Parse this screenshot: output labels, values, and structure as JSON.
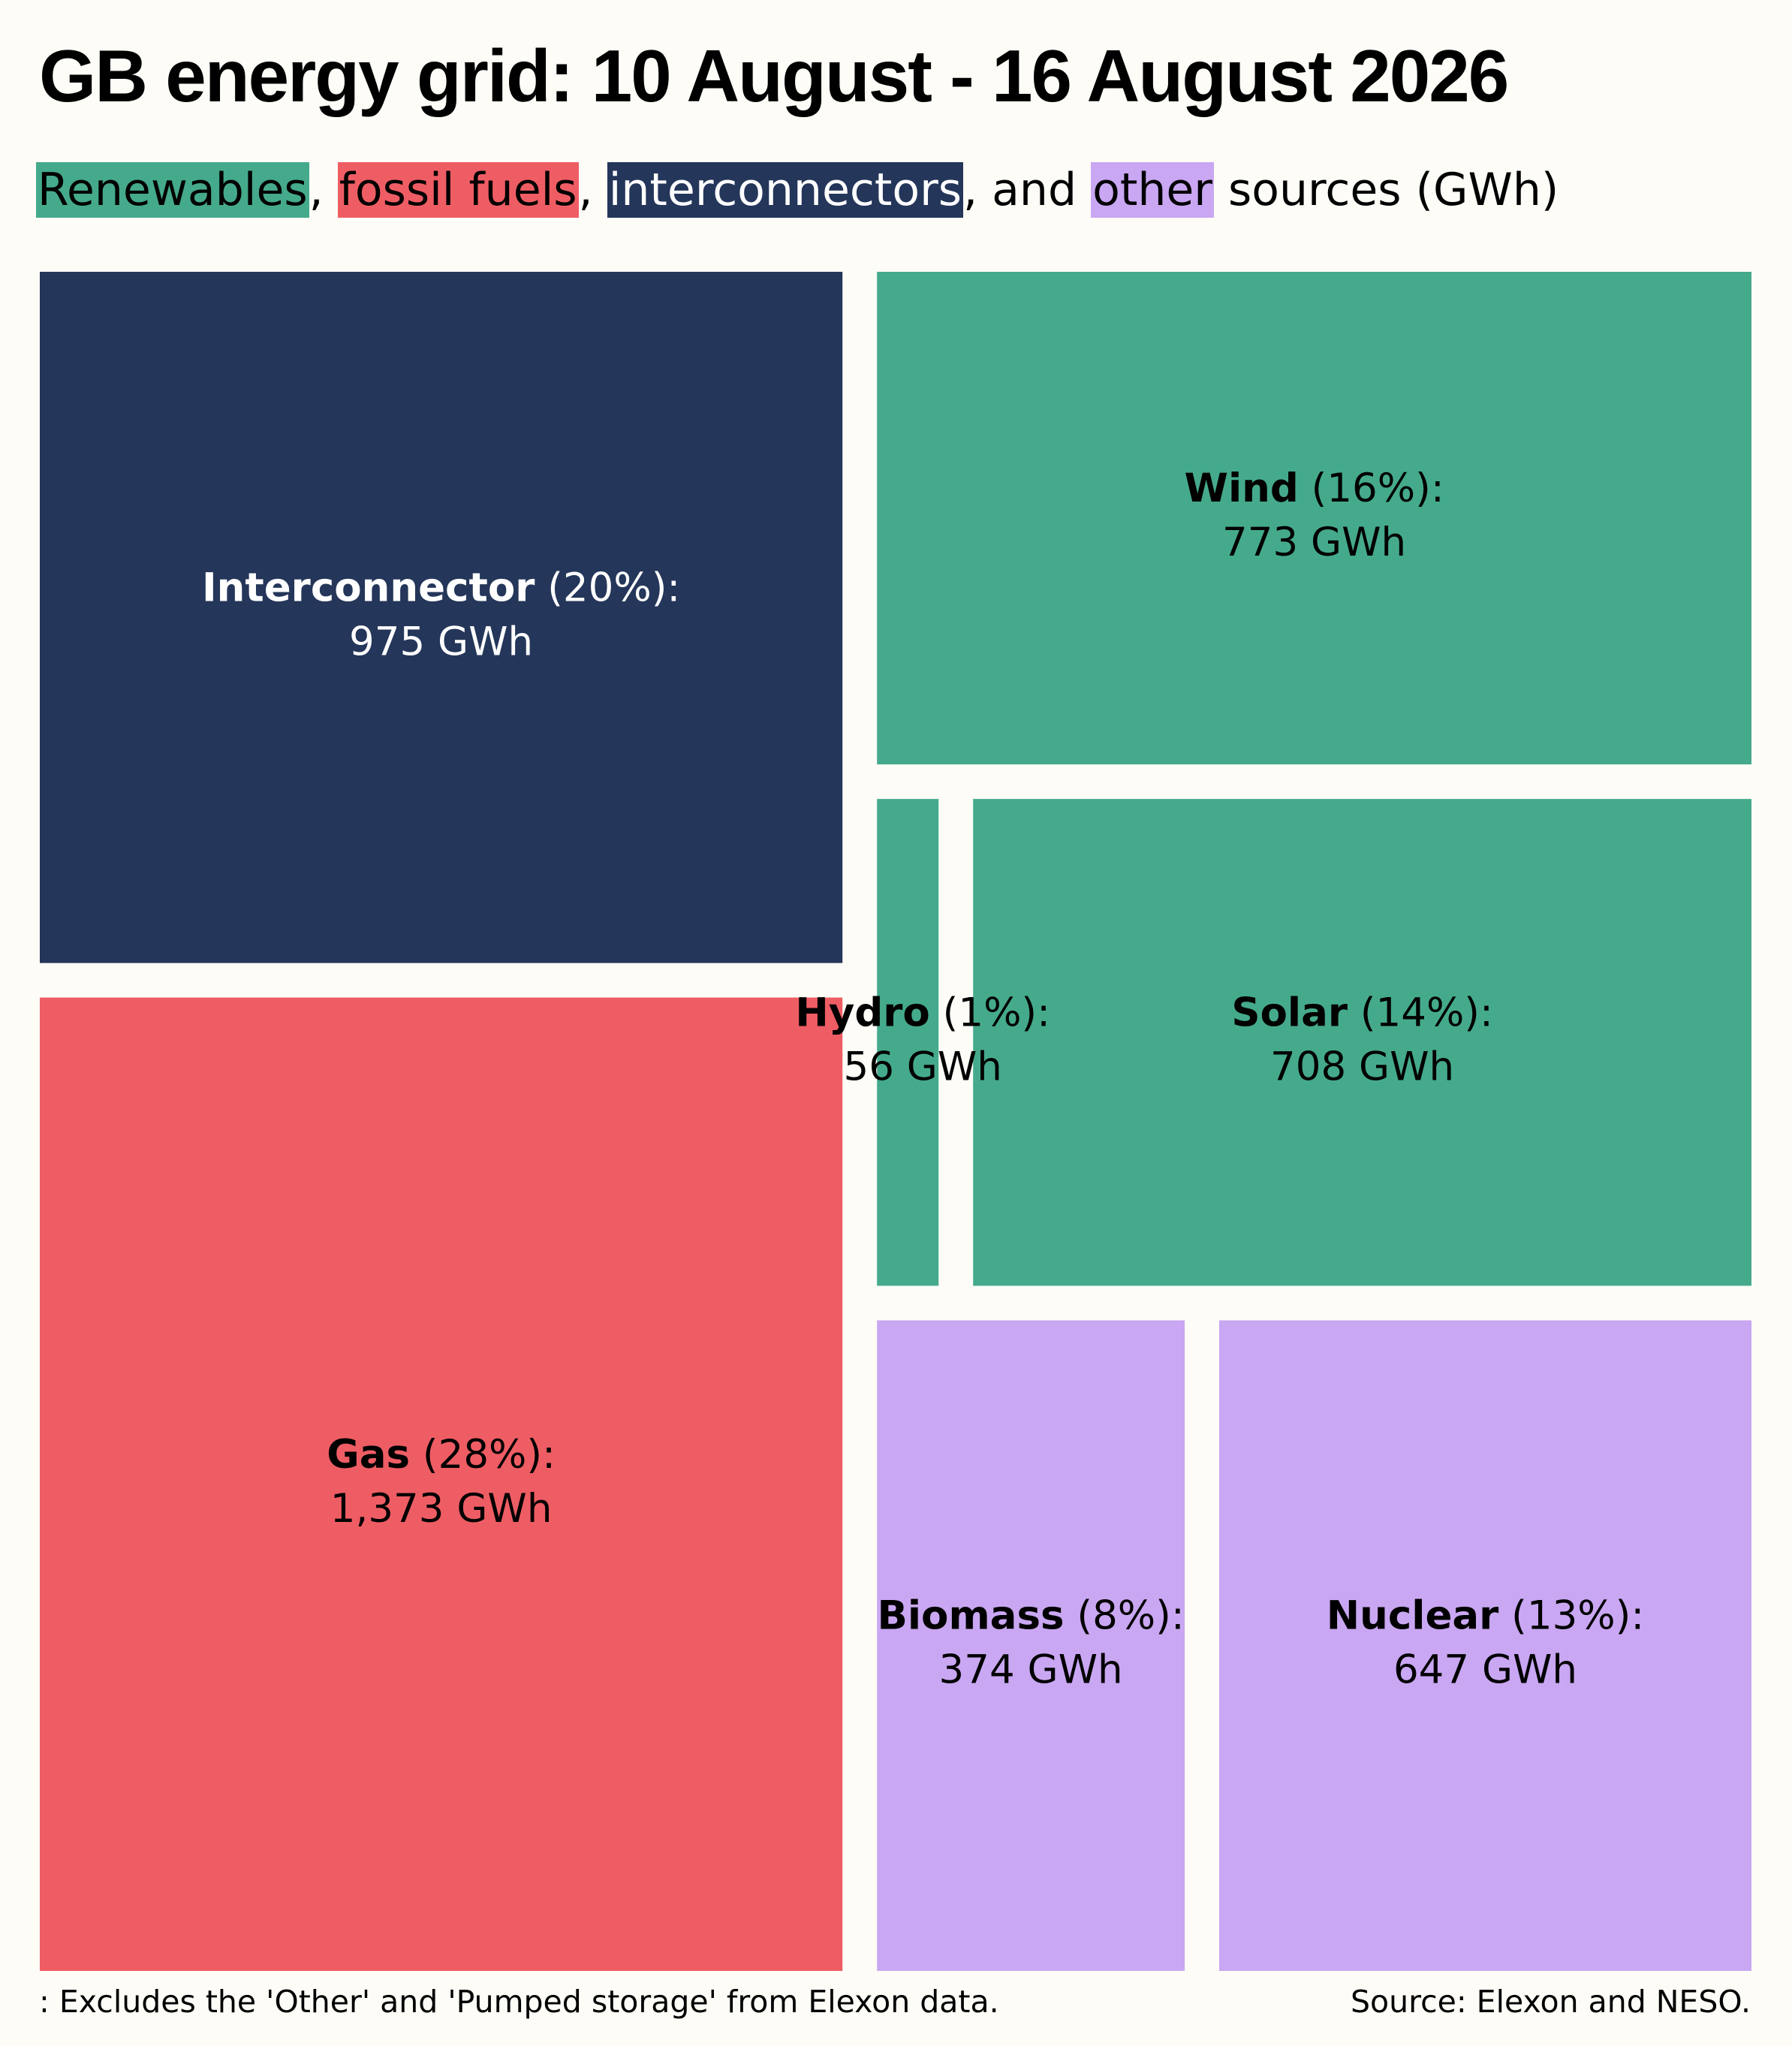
{
  "header": {
    "title": "GB energy grid: 10 August - 16 August 2026",
    "subtitle": {
      "renewables": "Renewables",
      "sep1": ", ",
      "fossil": "fossil fuels",
      "sep2": ", ",
      "interconnectors": "interconnectors",
      "sep3": ", and ",
      "other": "other",
      "rest": " sources (GWh)"
    }
  },
  "footer": {
    "note": ": Excludes the 'Other' and 'Pumped storage' from Elexon data.",
    "source": "Source: Elexon and NESO."
  },
  "colors": {
    "renewables": "#45aa8c",
    "fossil": "#ef5d64",
    "interconnectors": "#243659",
    "other": "#c9a7f2",
    "background": "#fdfcf7"
  },
  "chart_data": {
    "type": "treemap",
    "title": "GB energy grid: 10 August - 16 August 2026",
    "unit": "GWh",
    "items": [
      {
        "name": "Interconnector",
        "percent": "(20%):",
        "value": 975,
        "value_label": "975 GWh",
        "group": "interconnectors"
      },
      {
        "name": "Gas",
        "percent": "(28%):",
        "value": 1373,
        "value_label": "1,373 GWh",
        "group": "fossil"
      },
      {
        "name": "Wind",
        "percent": "(16%):",
        "value": 773,
        "value_label": "773 GWh",
        "group": "renewables"
      },
      {
        "name": "Hydro",
        "percent": "(1%):",
        "value": 56,
        "value_label": "56 GWh",
        "group": "renewables"
      },
      {
        "name": "Solar",
        "percent": "(14%):",
        "value": 708,
        "value_label": "708 GWh",
        "group": "renewables"
      },
      {
        "name": "Biomass",
        "percent": "(8%):",
        "value": 374,
        "value_label": "374 GWh",
        "group": "other"
      },
      {
        "name": "Nuclear",
        "percent": "(13%):",
        "value": 647,
        "value_label": "647 GWh",
        "group": "other"
      }
    ]
  }
}
